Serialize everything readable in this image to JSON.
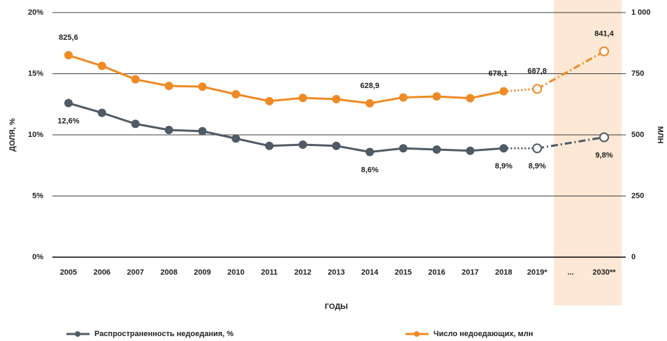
{
  "chart_data": {
    "type": "line",
    "categories": [
      "2005",
      "2006",
      "2007",
      "2008",
      "2009",
      "2010",
      "2011",
      "2012",
      "2013",
      "2014",
      "2015",
      "2016",
      "2017",
      "2018",
      "2019*",
      "...",
      "2030**"
    ],
    "series": [
      {
        "name": "Распространенность недоедания, %",
        "color": "#4f5b66",
        "values": [
          12.6,
          11.8,
          10.9,
          10.4,
          10.3,
          9.7,
          9.1,
          9.2,
          9.1,
          8.6,
          8.9,
          8.8,
          8.7,
          8.9,
          8.9,
          null,
          9.8
        ],
        "value_labels": [
          "12,6%",
          null,
          null,
          null,
          null,
          null,
          null,
          null,
          null,
          "8,6%",
          null,
          null,
          null,
          "8,9%",
          "8,9%",
          null,
          "9,8%"
        ]
      },
      {
        "name": "Число недоедающих, млн",
        "color": "#f08a24",
        "axis": "y2",
        "values": [
          825.6,
          782,
          727,
          700,
          697,
          666,
          638,
          651,
          646,
          628.9,
          653,
          657,
          650,
          678.1,
          687.8,
          null,
          841.4
        ],
        "value_labels": [
          "825,6",
          null,
          null,
          null,
          null,
          null,
          null,
          null,
          null,
          "628,9",
          null,
          null,
          null,
          "678,1",
          "687,8",
          null,
          "841,4"
        ]
      }
    ],
    "ylabel": "ДОЛЯ, %",
    "y2label": "МЛН",
    "xlabel": "ГОДЫ",
    "ylim": [
      0,
      20
    ],
    "yticks": [
      {
        "value": 0,
        "label": "0%"
      },
      {
        "value": 5,
        "label": "5%"
      },
      {
        "value": 10,
        "label": "10%"
      },
      {
        "value": 15,
        "label": "15%"
      },
      {
        "value": 20,
        "label": "20%"
      }
    ],
    "y2lim": [
      0,
      1000
    ],
    "y2ticks": [
      0,
      250,
      500,
      750,
      {
        "value": 1000,
        "label": "1 000"
      }
    ],
    "grid": true
  }
}
